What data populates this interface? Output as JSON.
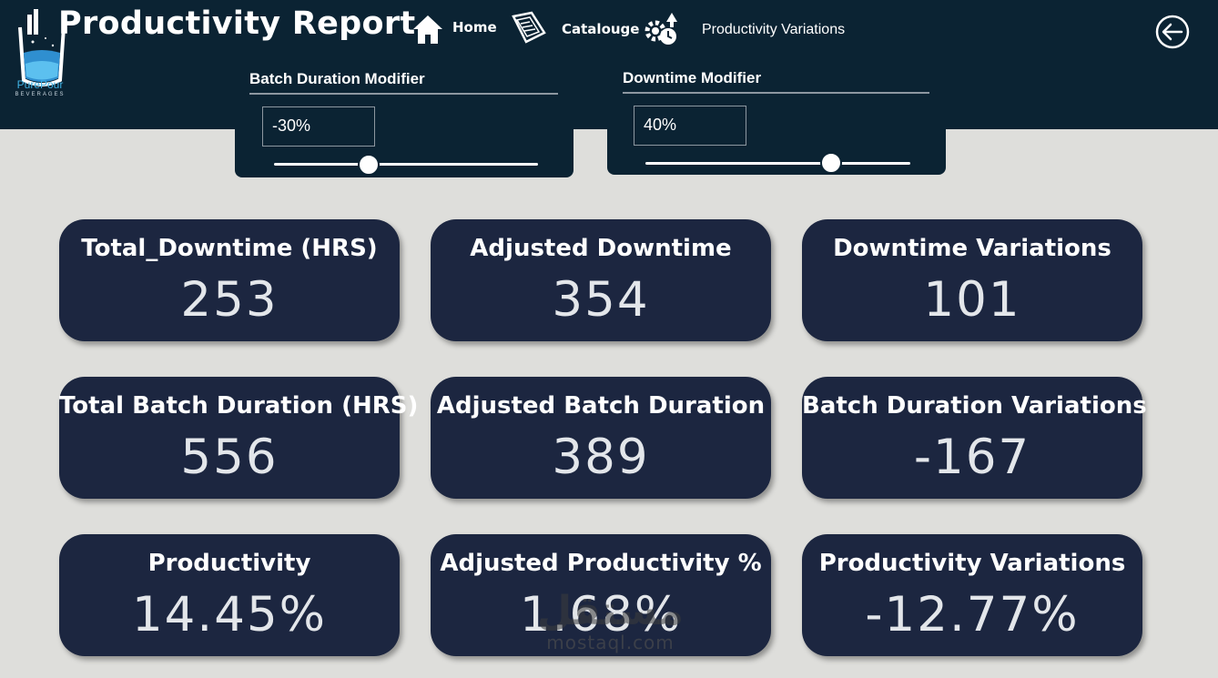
{
  "brand": {
    "name": "PurePour",
    "tagline": "BEVERAGES"
  },
  "header": {
    "title": "Productivity Report"
  },
  "nav": [
    {
      "label": "Home",
      "icon": "home-icon"
    },
    {
      "label": "Catalouge",
      "icon": "catalogue-icon"
    },
    {
      "label": "Productivity Variations",
      "icon": "gear-arrow-icon"
    }
  ],
  "back_icon": "back-arrow-icon",
  "slicers": [
    {
      "title": "Batch Duration Modifier",
      "value": "-30%",
      "level": 0.36
    },
    {
      "title": "Downtime Modifier",
      "value": "40%",
      "level": 0.7
    }
  ],
  "cards": [
    {
      "label": "Total_Downtime (HRS)",
      "value": "253"
    },
    {
      "label": "Adjusted Downtime",
      "value": "354"
    },
    {
      "label": "Downtime Variations",
      "value": "101"
    },
    {
      "label": "Total Batch Duration (HRS)",
      "value": "556"
    },
    {
      "label": "Adjusted Batch Duration",
      "value": "389"
    },
    {
      "label": "Batch Duration Variations",
      "value": "-167"
    },
    {
      "label": "Productivity",
      "value": "14.45%"
    },
    {
      "label": "Adjusted Productivity %",
      "value": "1.68%"
    },
    {
      "label": "Productivity Variations",
      "value": "-12.77%"
    }
  ],
  "watermark": {
    "logo": "مستقل",
    "text": "mostaql.com"
  },
  "colors": {
    "header_bg": "#0b2333",
    "card_bg": "#1c2640",
    "page_bg": "#dededb",
    "accent": "#3fb2e3"
  }
}
